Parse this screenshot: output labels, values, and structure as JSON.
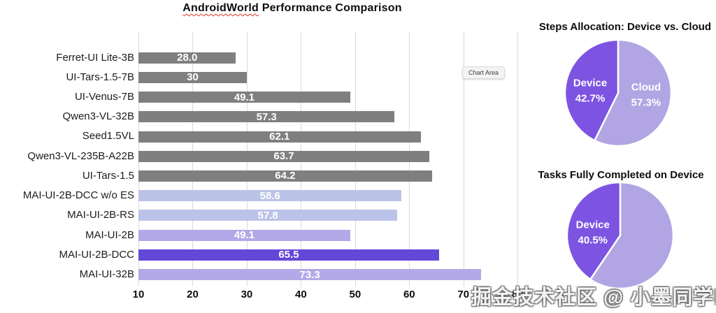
{
  "watermark": {
    "text": "掘金技术社区 @ 小墨同学boy"
  },
  "chart_data": [
    {
      "type": "bar",
      "orientation": "horizontal",
      "title_underlined": "AndroidWorld",
      "title_rest": " Performance Comparison",
      "annotation_tooltip": "Chart Area",
      "categories": [
        "Ferret-UI Lite-3B",
        "UI-Tars-1.5-7B",
        "UI-Venus-7B",
        "Qwen3-VL-32B",
        "Seed1.5VL",
        "Qwen3-VL-235B-A22B",
        "UI-Tars-1.5",
        "MAI-UI-2B-DCC w/o ES",
        "MAI-UI-2B-RS",
        "MAI-UI-2B",
        "MAI-UI-2B-DCC",
        "MAI-UI-32B"
      ],
      "values": [
        28.0,
        30,
        49.1,
        57.3,
        62.1,
        63.7,
        64.2,
        58.6,
        57.8,
        49.1,
        65.5,
        73.3
      ],
      "value_labels": [
        "28.0",
        "30",
        "49.1",
        "57.3",
        "62.1",
        "63.7",
        "64.2",
        "58.6",
        "57.8",
        "49.1",
        "65.5",
        "73.3"
      ],
      "bar_colors": [
        "#7f7f7f",
        "#7f7f7f",
        "#7f7f7f",
        "#7f7f7f",
        "#7f7f7f",
        "#7f7f7f",
        "#7f7f7f",
        "#bcc3e8",
        "#bcc3e8",
        "#b3a9e8",
        "#6348d8",
        "#b3a9e8"
      ],
      "value_label_color": "#ffffff",
      "xlim": [
        10,
        83.2
      ],
      "xticks": [
        10,
        20,
        30,
        40,
        50,
        60,
        70,
        80
      ],
      "grid": true,
      "gridline_color": "#dadada"
    },
    {
      "type": "pie",
      "title": "Steps Allocation: Device vs. Cloud",
      "start_angle_deg": 0,
      "direction": "clockwise",
      "slices": [
        {
          "label": "Cloud",
          "value_pct": 57.3,
          "pct_label": "57.3%",
          "color": "#b1a6e3",
          "show_label": true
        },
        {
          "label": "Device",
          "value_pct": 42.7,
          "pct_label": "42.7%",
          "color": "#7d54e2",
          "show_label": true
        }
      ]
    },
    {
      "type": "pie",
      "title": "Tasks Fully Completed on Device",
      "start_angle_deg": 0,
      "direction": "clockwise",
      "slices": [
        {
          "label": "",
          "value_pct": 59.5,
          "pct_label": "",
          "color": "#b1a6e3",
          "show_label": false
        },
        {
          "label": "Device",
          "value_pct": 40.5,
          "pct_label": "40.5%",
          "color": "#7d54e2",
          "show_label": true
        }
      ]
    }
  ]
}
